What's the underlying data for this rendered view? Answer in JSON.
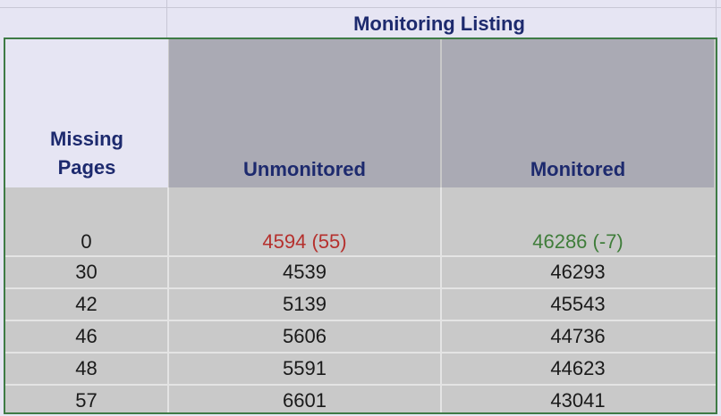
{
  "title": "Monitoring Listing",
  "headers": {
    "missing_pages": [
      "Missing",
      "Pages"
    ],
    "unmonitored": "Unmonitored",
    "monitored": "Monitored"
  },
  "rows": [
    {
      "missing": "0",
      "unmonitored": "4594 (55)",
      "monitored": "46286 (-7)"
    },
    {
      "missing": "30",
      "unmonitored": "4539",
      "monitored": "46293"
    },
    {
      "missing": "42",
      "unmonitored": "5139",
      "monitored": "45543"
    },
    {
      "missing": "46",
      "unmonitored": "5606",
      "monitored": "44736"
    },
    {
      "missing": "48",
      "unmonitored": "5591",
      "monitored": "44623"
    },
    {
      "missing": "57",
      "unmonitored": "6601",
      "monitored": "43041"
    }
  ],
  "colors": {
    "header_text": "#1d2a6e",
    "highlight_red": "#b5302d",
    "highlight_green": "#3f7d3a",
    "frame": "#3e7b45"
  }
}
